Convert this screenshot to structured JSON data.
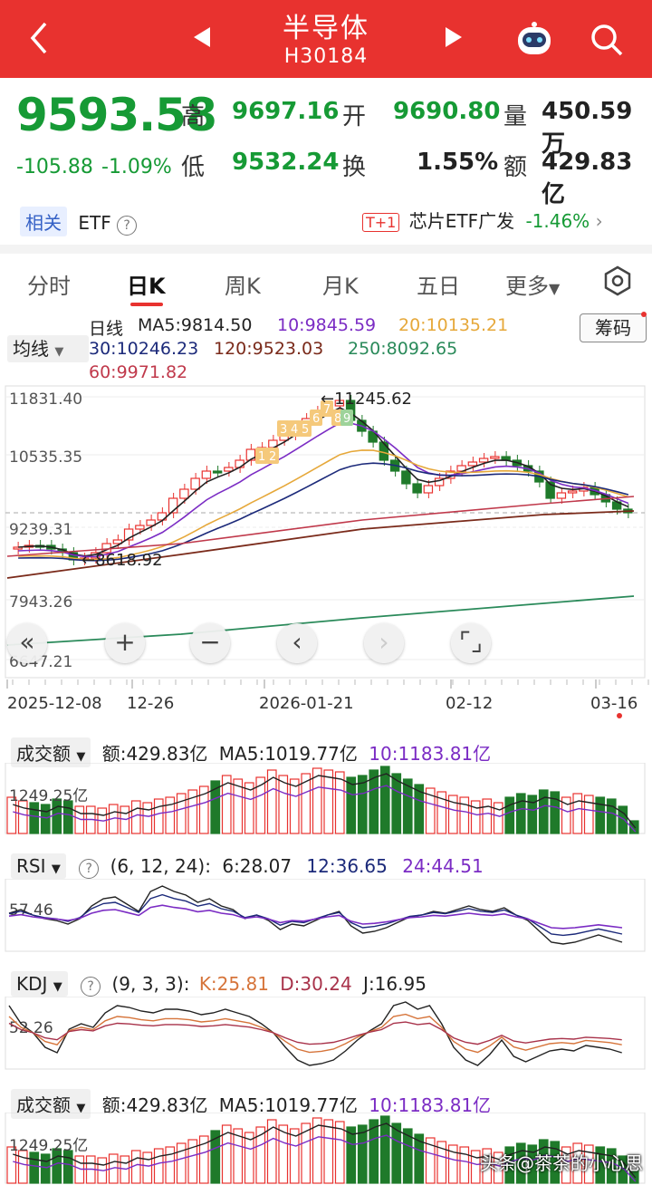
{
  "header": {
    "title": "半导体",
    "code": "H30184",
    "back_icon": "chevron-left-icon",
    "bg": "#e8322f"
  },
  "quote": {
    "price": "9593.58",
    "change": "-105.88",
    "change_pct": "-1.09%",
    "high_label": "高",
    "high": "9697.16",
    "open_label": "开",
    "open": "9690.80",
    "vol_label": "量",
    "vol": "450.59万",
    "low_label": "低",
    "low": "9532.24",
    "turn_label": "换",
    "turn": "1.55%",
    "amt_label": "额",
    "amt": "429.83亿"
  },
  "related": {
    "tag": "相关",
    "etf": "ETF",
    "t1": "T+1",
    "etf_name": "芯片ETF广发",
    "etf_pct": "-1.46%"
  },
  "tabs": [
    {
      "label": "分时"
    },
    {
      "label": "日K"
    },
    {
      "label": "周K"
    },
    {
      "label": "月K"
    },
    {
      "label": "五日"
    },
    {
      "label": "更多"
    }
  ],
  "ma": {
    "title": "日线",
    "ma5": "MA5:9814.50",
    "ma10": "10:9845.59",
    "ma20": "20:10135.21",
    "ma30": "30:10246.23",
    "ma120": "120:9523.03",
    "ma250": "250:8092.65",
    "ma60": "60:9971.82",
    "selector": "均线",
    "chips": "筹码"
  },
  "chart_data": {
    "type": "candlestick",
    "y_ticks": [
      "11831.40",
      "10535.35",
      "9239.31",
      "7943.26",
      "6647.21"
    ],
    "x_ticks": [
      "2025-12-08",
      "12-26",
      "2026-01-21",
      "02-12",
      "03-16"
    ],
    "max_label": "←11245.62",
    "min_label": "←8618.92",
    "seq_numbers": [
      "1",
      "2",
      "3",
      "4",
      "5",
      "6",
      "7",
      "8",
      "9"
    ]
  },
  "amount_panel": {
    "selector": "成交额",
    "amt": "额:429.83亿",
    "ma5": "MA5:1019.77亿",
    "ma10": "10:1183.81亿",
    "y_tick": "1249.25亿"
  },
  "rsi_panel": {
    "selector": "RSI",
    "params": "(6, 12, 24):",
    "v6": "6:28.07",
    "v12": "12:36.65",
    "v24": "24:44.51",
    "y_tick": "57.46"
  },
  "kdj_panel": {
    "selector": "KDJ",
    "params": "(9, 3, 3):",
    "k": "K:25.81",
    "d": "D:30.24",
    "j": "J:16.95",
    "y_tick": "52.26"
  },
  "amount_panel2": {
    "selector": "成交额",
    "amt": "额:429.83亿",
    "ma5": "MA5:1019.77亿",
    "ma10": "10:1183.81亿",
    "y_tick": "1249.25亿"
  },
  "watermark": "头条@茶茶的小心思",
  "colors": {
    "up": "#e8322f",
    "down": "#1f7a2a",
    "ma5": "#222222",
    "ma10": "#7b2cc4",
    "ma20": "#e6a83a",
    "ma30": "#1c2a7a",
    "ma120": "#7a2a1a",
    "ma250": "#2a8a5a",
    "ma60": "#c0394b"
  }
}
